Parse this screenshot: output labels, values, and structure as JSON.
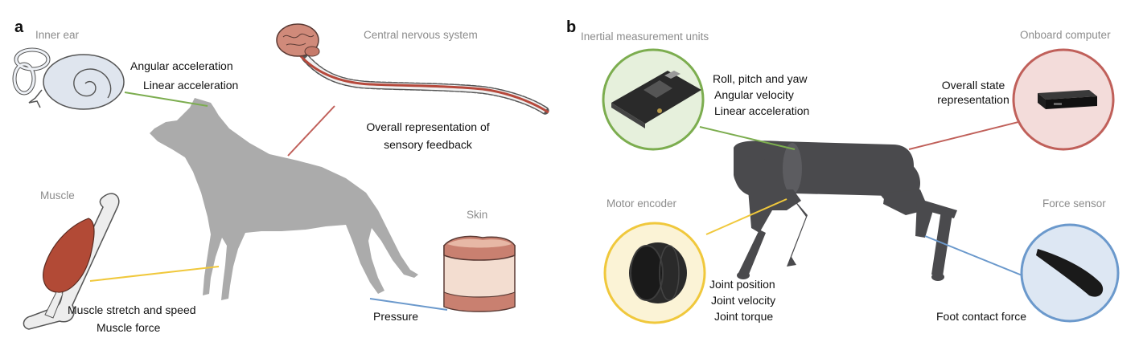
{
  "colors": {
    "green": "#7cad4f",
    "red": "#c0605a",
    "yellow": "#f0c83c",
    "blue": "#6b99cc",
    "animal": "#ababab",
    "robot": "#4a4a4d",
    "muscle": "#b24a36",
    "skin": "#f3ddd0"
  },
  "panel_a": {
    "letter": "a",
    "inner_ear": {
      "title": "Inner ear",
      "line1": "Angular acceleration",
      "line2": "Linear acceleration"
    },
    "cns": {
      "title": "Central nervous system",
      "line1": "Overall representation of",
      "line2": "sensory feedback"
    },
    "muscle": {
      "title": "Muscle",
      "line1": "Muscle stretch and speed",
      "line2": "Muscle force"
    },
    "skin": {
      "title": "Skin",
      "line1": "Pressure"
    }
  },
  "panel_b": {
    "letter": "b",
    "imu": {
      "title": "Inertial measurement units",
      "line1": "Roll, pitch and yaw",
      "line2": "Angular velocity",
      "line3": "Linear acceleration"
    },
    "computer": {
      "title": "Onboard computer",
      "line1": "Overall state",
      "line2": "representation"
    },
    "encoder": {
      "title": "Motor encoder",
      "line1": "Joint position",
      "line2": "Joint velocity",
      "line3": "Joint torque"
    },
    "force": {
      "title": "Force sensor",
      "line1": "Foot contact force"
    }
  }
}
